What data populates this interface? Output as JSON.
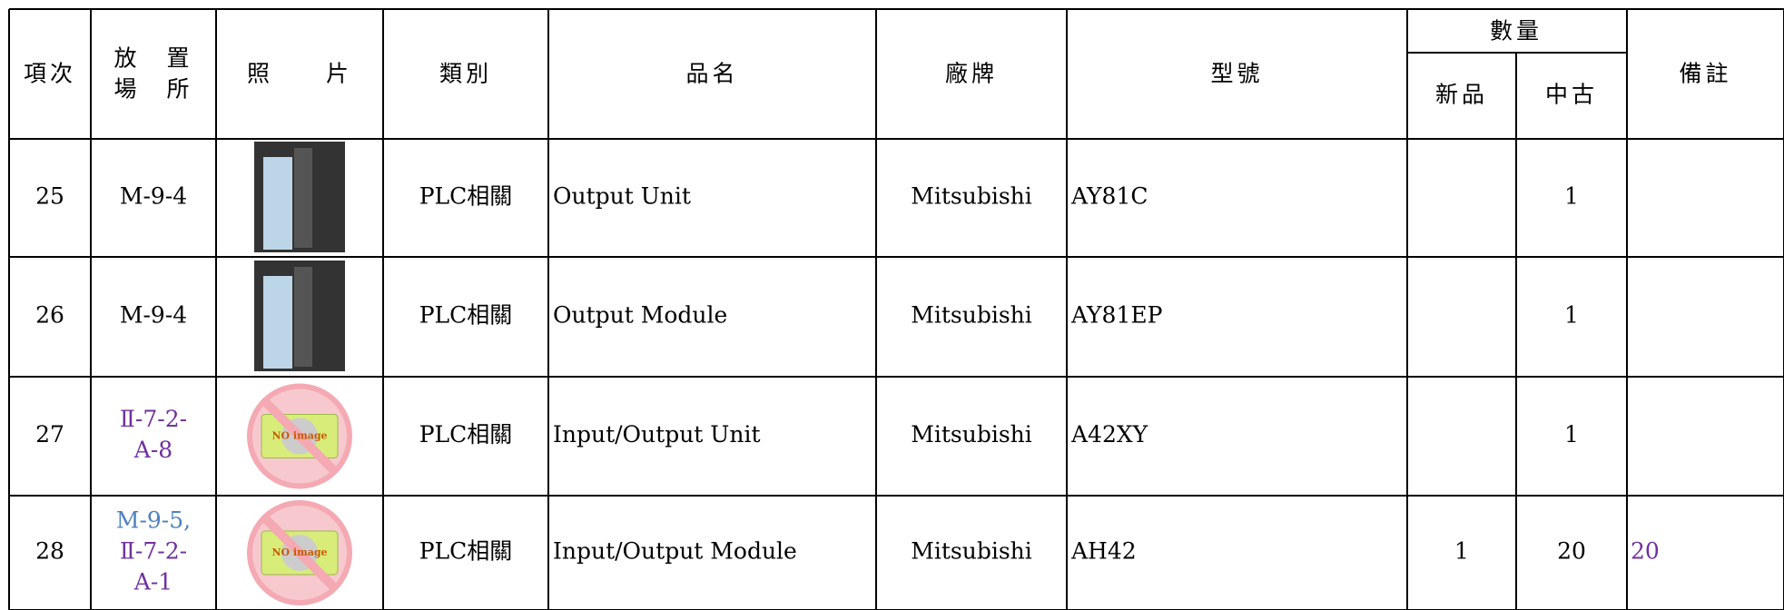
{
  "header": {
    "columns": [
      "項次",
      [
        "放　置",
        "場　所"
      ],
      "照　　片",
      "類別",
      "品名",
      "廠牌",
      "型號",
      "數量",
      "備註"
    ],
    "quantity_sub": [
      "新品",
      "中古"
    ]
  },
  "rows": [
    {
      "no": 25,
      "location": [
        {
          "text": "M-9-4",
          "color": "#000000"
        }
      ],
      "category": "PLC相關",
      "name": "Output Unit",
      "brand": "Mitsubishi",
      "model": "AY81C",
      "used": 1
    },
    {
      "no": 26,
      "location": [
        {
          "text": "M-9-4",
          "color": "#000000"
        }
      ],
      "category": "PLC相關",
      "name": "Output Module",
      "brand": "Mitsubishi",
      "model": "AY81EP",
      "used": 1
    },
    {
      "no": 27,
      "location": [
        {
          "text": "Ⅱ-7-2-",
          "color": "#7030a0"
        },
        {
          "text": "A-8",
          "color": "#7030a0"
        }
      ],
      "photo": "NO image",
      "category": "PLC相關",
      "name": "Input/Output Unit",
      "brand": "Mitsubishi",
      "model": "A42XY",
      "used": 1
    },
    {
      "no": 28,
      "location": [
        {
          "text": "M-9-5,",
          "color": "#4f81bd"
        },
        {
          "text": "Ⅱ-7-2-",
          "color": "#7030a0"
        },
        {
          "text": "A-1",
          "color": "#7030a0"
        }
      ],
      "photo": "NO image",
      "category": "PLC相關",
      "name": "Input/Output Module",
      "brand": "Mitsubishi",
      "model": "AH42",
      "new": 1,
      "used": 20,
      "note": {
        "text": "20",
        "color": "#7030a0"
      }
    }
  ]
}
